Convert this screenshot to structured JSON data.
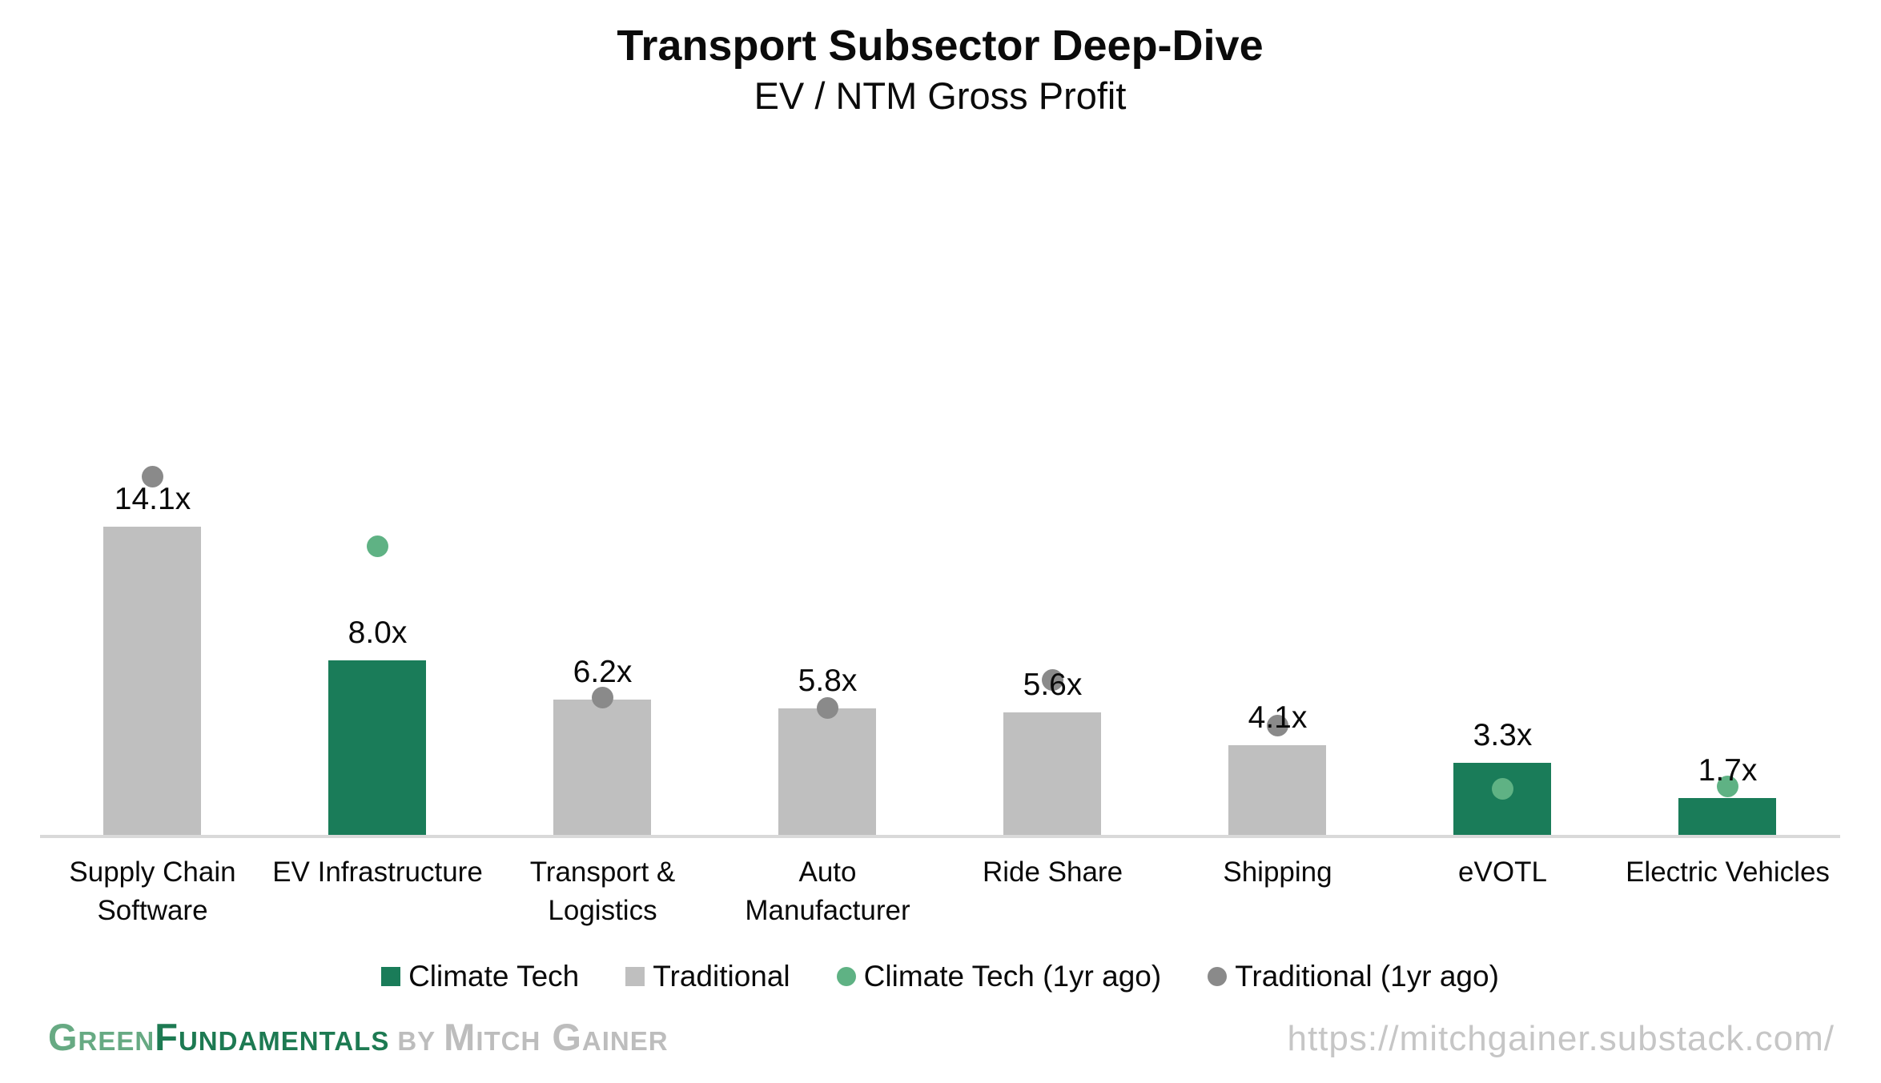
{
  "header": {
    "title": "Transport Subsector Deep-Dive",
    "subtitle": "EV / NTM Gross Profit"
  },
  "chart_data": {
    "type": "bar",
    "title": "Transport Subsector Deep-Dive",
    "subtitle": "EV / NTM Gross Profit",
    "categories": [
      "Supply Chain Software",
      "EV Infrastructure",
      "Transport & Logistics",
      "Auto Manufacturer",
      "Ride Share",
      "Shipping",
      "eVOTL",
      "Electric Vehicles"
    ],
    "category_groups": [
      "traditional",
      "climate",
      "traditional",
      "traditional",
      "traditional",
      "traditional",
      "climate",
      "climate"
    ],
    "series": [
      {
        "name": "Current EV / NTM Gross Profit (bars)",
        "style": "bar",
        "values": [
          14.1,
          8.0,
          6.2,
          5.8,
          5.6,
          4.1,
          3.3,
          1.7
        ],
        "labels": [
          "14.1x",
          "8.0x",
          "6.2x",
          "5.8x",
          "5.6x",
          "4.1x",
          "3.3x",
          "1.7x"
        ]
      },
      {
        "name": "1yr ago (dots, estimated from plot)",
        "style": "dot",
        "values": [
          16.4,
          13.2,
          6.3,
          5.8,
          7.1,
          5.0,
          2.1,
          2.2
        ]
      }
    ],
    "ylim": [
      0,
      23.5
    ],
    "grid": false,
    "y_axis_shown": false,
    "legend_position": "bottom"
  },
  "legend": {
    "items": [
      {
        "label": "Climate Tech",
        "marker": "square",
        "color": "#1a7c59"
      },
      {
        "label": "Traditional",
        "marker": "square",
        "color": "#bfbfbf"
      },
      {
        "label": "Climate Tech (1yr ago)",
        "marker": "circle",
        "color": "#5fb284"
      },
      {
        "label": "Traditional (1yr ago)",
        "marker": "circle",
        "color": "#8a8a8a"
      }
    ]
  },
  "footer": {
    "brand": {
      "word1": "Green",
      "word2": "Fundamentals",
      "connector": "by",
      "author": "Mitch Gainer"
    },
    "url": "https://mitchgainer.substack.com/"
  },
  "colors": {
    "climate_bar": "#1a7c59",
    "traditional_bar": "#bfbfbf",
    "climate_dot": "#5fb284",
    "traditional_dot": "#8a8a8a",
    "axis_line": "#d9d9d9"
  }
}
